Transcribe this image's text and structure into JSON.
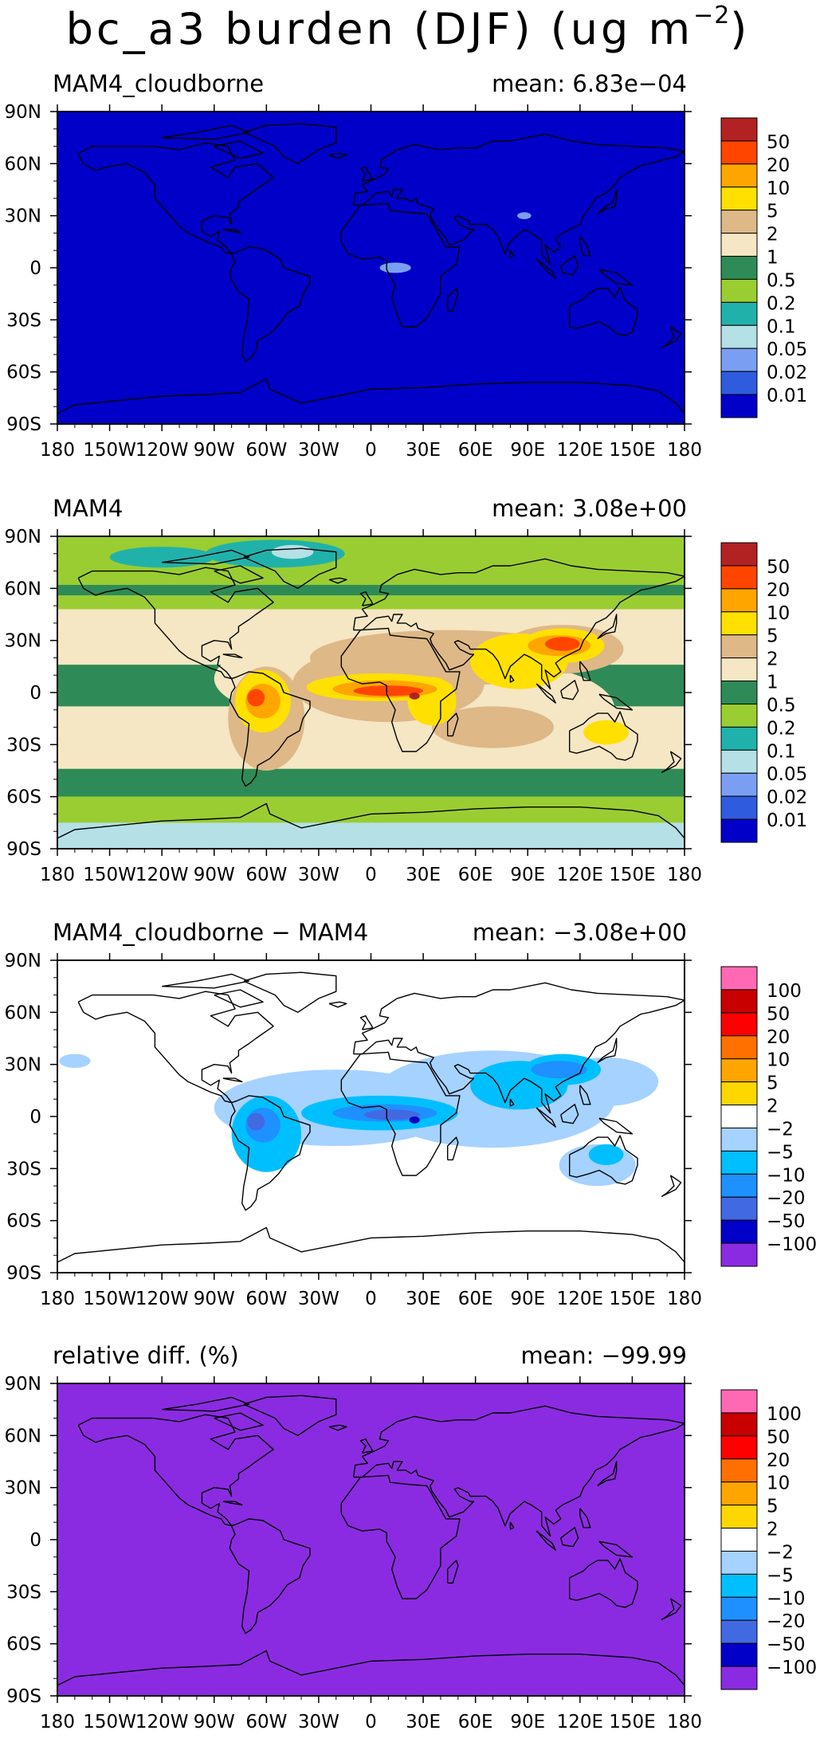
{
  "figure_title": "bc_a3 burden (DJF) (ug m",
  "figure_title_exponent": "−2",
  "figure_title_close": ")",
  "lon_ticks": [
    "180",
    "150W",
    "120W",
    "90W",
    "60W",
    "30W",
    "0",
    "30E",
    "60E",
    "90E",
    "120E",
    "150E",
    "180"
  ],
  "lat_ticks": [
    "90N",
    "60N",
    "30N",
    "0",
    "30S",
    "60S",
    "90S"
  ],
  "colors": {
    "abs_palette": [
      "#0000c8",
      "#2f5bde",
      "#7a9ff2",
      "#b4e0e6",
      "#20b2aa",
      "#9acd32",
      "#2e8b57",
      "#f5e6c4",
      "#deb887",
      "#ffe000",
      "#ffa500",
      "#ff4500",
      "#b22222"
    ],
    "diff_palette": [
      "#8a2be2",
      "#0000c8",
      "#4169e1",
      "#1e90ff",
      "#00bfff",
      "#a6d2ff",
      "#ffffff",
      "#ffd700",
      "#ffa500",
      "#ff7000",
      "#ff0000",
      "#c80000",
      "#ff69b4"
    ]
  },
  "panels": [
    {
      "id": "p1",
      "title": "MAM4_cloudborne",
      "mean": "mean: 6.83e−04",
      "legend": "abs",
      "legend_labels": [
        "50",
        "20",
        "10",
        "5",
        "2",
        "1",
        "0.5",
        "0.2",
        "0.1",
        "0.05",
        "0.02",
        "0.01"
      ]
    },
    {
      "id": "p2",
      "title": "MAM4",
      "mean": "mean: 3.08e+00",
      "legend": "abs",
      "legend_labels": [
        "50",
        "20",
        "10",
        "5",
        "2",
        "1",
        "0.5",
        "0.2",
        "0.1",
        "0.05",
        "0.02",
        "0.01"
      ]
    },
    {
      "id": "p3",
      "title": "MAM4_cloudborne − MAM4",
      "mean": "mean: −3.08e+00",
      "legend": "diff",
      "legend_labels": [
        "100",
        "50",
        "20",
        "10",
        "5",
        "2",
        "−2",
        "−5",
        "−10",
        "−20",
        "−50",
        "−100"
      ]
    },
    {
      "id": "p4",
      "title": "relative diff. (%)",
      "mean": "mean: −99.99",
      "legend": "diff",
      "legend_labels": [
        "100",
        "50",
        "20",
        "10",
        "5",
        "2",
        "−2",
        "−5",
        "−10",
        "−20",
        "−50",
        "−100"
      ]
    }
  ]
}
